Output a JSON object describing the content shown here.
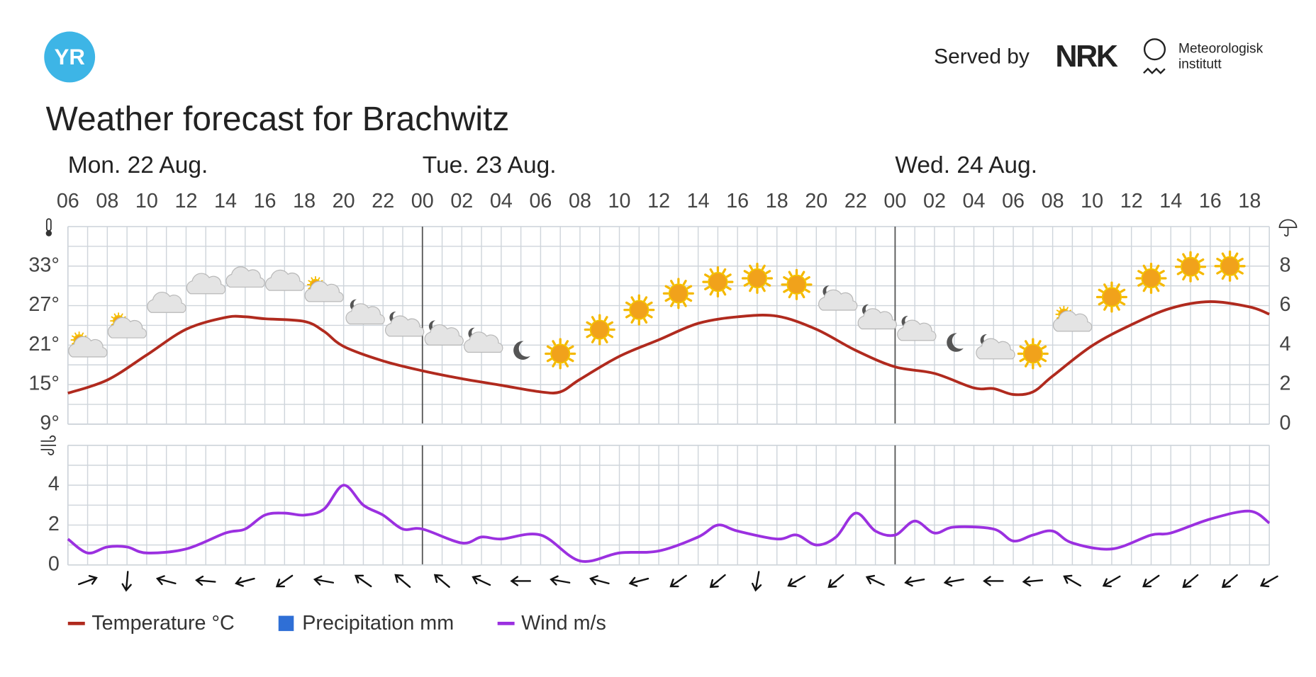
{
  "header": {
    "logo": "YR",
    "served_by": "Served by",
    "nrk": "NRK",
    "met_line1": "Meteorologisk",
    "met_line2": "institutt"
  },
  "title": "Weather forecast for Brachwitz",
  "days": [
    {
      "label": "Mon. 22 Aug.",
      "x": 0
    },
    {
      "label": "Tue. 23 Aug.",
      "x": 18
    },
    {
      "label": "Wed. 24 Aug.",
      "x": 42
    }
  ],
  "chart_data": [
    {
      "type": "line",
      "xlim": [
        0,
        61
      ],
      "xticks": [
        {
          "value": 0,
          "label": "06"
        },
        {
          "value": 2,
          "label": "08"
        },
        {
          "value": 4,
          "label": "10"
        },
        {
          "value": 6,
          "label": "12"
        },
        {
          "value": 8,
          "label": "14"
        },
        {
          "value": 10,
          "label": "16"
        },
        {
          "value": 12,
          "label": "18"
        },
        {
          "value": 14,
          "label": "20"
        },
        {
          "value": 16,
          "label": "22"
        },
        {
          "value": 18,
          "label": "00"
        },
        {
          "value": 20,
          "label": "02"
        },
        {
          "value": 22,
          "label": "04"
        },
        {
          "value": 24,
          "label": "06"
        },
        {
          "value": 26,
          "label": "08"
        },
        {
          "value": 28,
          "label": "10"
        },
        {
          "value": 30,
          "label": "12"
        },
        {
          "value": 32,
          "label": "14"
        },
        {
          "value": 34,
          "label": "16"
        },
        {
          "value": 36,
          "label": "18"
        },
        {
          "value": 38,
          "label": "20"
        },
        {
          "value": 40,
          "label": "22"
        },
        {
          "value": 42,
          "label": "00"
        },
        {
          "value": 44,
          "label": "02"
        },
        {
          "value": 46,
          "label": "04"
        },
        {
          "value": 48,
          "label": "06"
        },
        {
          "value": 50,
          "label": "08"
        },
        {
          "value": 52,
          "label": "10"
        },
        {
          "value": 54,
          "label": "12"
        },
        {
          "value": 56,
          "label": "14"
        },
        {
          "value": 58,
          "label": "16"
        },
        {
          "value": 60,
          "label": "18"
        }
      ],
      "ylim": [
        9,
        39
      ],
      "yticks": [
        {
          "value": 9,
          "label": "9°"
        },
        {
          "value": 15,
          "label": "15°"
        },
        {
          "value": 21,
          "label": "21°"
        },
        {
          "value": 27,
          "label": "27°"
        },
        {
          "value": 33,
          "label": "33°"
        }
      ],
      "y2lim": [
        0,
        10
      ],
      "y2ticks": [
        0,
        2,
        4,
        6,
        8
      ],
      "grid": true,
      "series": [
        {
          "name": "Temperature °C",
          "color": "#b02a1e",
          "x": [
            0,
            2,
            4,
            6,
            8,
            9,
            10,
            12,
            13,
            14,
            16,
            18,
            20,
            22,
            24,
            25,
            26,
            28,
            30,
            32,
            34,
            36,
            38,
            40,
            42,
            44,
            46,
            47,
            48,
            49,
            50,
            52,
            54,
            56,
            58,
            60,
            61
          ],
          "values": [
            13.7,
            15.7,
            19.5,
            23.4,
            25.2,
            25.3,
            25,
            24.6,
            23.1,
            20.8,
            18.6,
            17.1,
            15.9,
            14.9,
            13.9,
            13.9,
            15.8,
            19.3,
            21.8,
            24.3,
            25.3,
            25.4,
            23.4,
            20.2,
            17.7,
            16.7,
            14.5,
            14.4,
            13.5,
            13.9,
            16.3,
            20.9,
            24.1,
            26.6,
            27.6,
            26.8,
            25.7
          ]
        }
      ],
      "precipitation": {
        "name": "Precipitation mm",
        "color": "#2f6fd6",
        "axis": "y2"
      }
    },
    {
      "type": "line",
      "xlim": [
        0,
        61
      ],
      "ylim": [
        0,
        6
      ],
      "yticks": [
        0,
        2,
        4
      ],
      "grid": true,
      "series": [
        {
          "name": "Wind m/s",
          "color": "#9b30e0",
          "x": [
            0,
            1,
            2,
            3,
            4,
            6,
            8,
            9,
            10,
            11,
            12,
            13,
            14,
            15,
            16,
            17,
            18,
            20,
            21,
            22,
            24,
            26,
            28,
            30,
            32,
            33,
            34,
            36,
            37,
            38,
            39,
            40,
            41,
            42,
            43,
            44,
            45,
            47,
            48,
            49,
            50,
            51,
            53,
            55,
            56,
            58,
            60,
            61
          ],
          "values": [
            1.3,
            0.6,
            0.9,
            0.9,
            0.6,
            0.8,
            1.6,
            1.8,
            2.5,
            2.6,
            2.5,
            2.8,
            4.0,
            3.0,
            2.5,
            1.8,
            1.8,
            1.1,
            1.4,
            1.3,
            1.5,
            0.2,
            0.6,
            0.7,
            1.4,
            2.0,
            1.7,
            1.3,
            1.5,
            1.0,
            1.4,
            2.6,
            1.7,
            1.5,
            2.2,
            1.6,
            1.9,
            1.8,
            1.2,
            1.5,
            1.7,
            1.1,
            0.8,
            1.5,
            1.6,
            2.3,
            2.7,
            2.1
          ]
        }
      ]
    }
  ]
}
